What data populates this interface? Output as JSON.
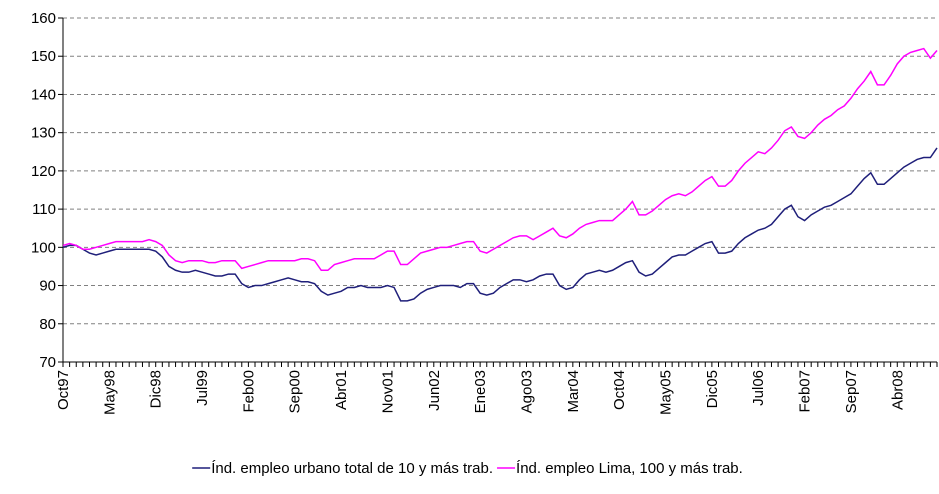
{
  "chart_data": {
    "type": "line",
    "categories": [
      "Oct97",
      null,
      null,
      null,
      null,
      null,
      null,
      "May98",
      null,
      null,
      null,
      null,
      null,
      null,
      "Dic98",
      null,
      null,
      null,
      null,
      null,
      null,
      "Jul99",
      null,
      null,
      null,
      null,
      null,
      null,
      "Feb00",
      null,
      null,
      null,
      null,
      null,
      null,
      "Sep00",
      null,
      null,
      null,
      null,
      null,
      null,
      "Abr01",
      null,
      null,
      null,
      null,
      null,
      null,
      "Nov01",
      null,
      null,
      null,
      null,
      null,
      null,
      "Jun02",
      null,
      null,
      null,
      null,
      null,
      null,
      "Ene03",
      null,
      null,
      null,
      null,
      null,
      null,
      "Ago03",
      null,
      null,
      null,
      null,
      null,
      null,
      "Mar04",
      null,
      null,
      null,
      null,
      null,
      null,
      "Oct04",
      null,
      null,
      null,
      null,
      null,
      null,
      "May05",
      null,
      null,
      null,
      null,
      null,
      null,
      "Dic05",
      null,
      null,
      null,
      null,
      null,
      null,
      "Jul06",
      null,
      null,
      null,
      null,
      null,
      null,
      "Feb07",
      null,
      null,
      null,
      null,
      null,
      null,
      "Sep07",
      null,
      null,
      null,
      null,
      null,
      null,
      "Abr08",
      null,
      null,
      null,
      null,
      null,
      null
    ],
    "series": [
      {
        "name": "Índ. empleo urbano total de 10 y más trab.",
        "color": "#1f1f7a",
        "values": [
          100,
          100.5,
          100.5,
          99.5,
          98.5,
          98,
          98.5,
          99,
          99.5,
          99.5,
          99.5,
          99.5,
          99.5,
          99.5,
          99,
          97.5,
          95,
          94,
          93.5,
          93.5,
          94,
          93.5,
          93,
          92.5,
          92.5,
          93,
          93,
          90.5,
          89.5,
          90,
          90,
          90.5,
          91,
          91.5,
          92,
          91.5,
          91,
          91,
          90.5,
          88.5,
          87.5,
          88,
          88.5,
          89.5,
          89.5,
          90,
          89.5,
          89.5,
          89.5,
          90,
          89.5,
          86,
          86,
          86.5,
          88,
          89,
          89.5,
          90,
          90,
          90,
          89.5,
          90.5,
          90.5,
          88,
          87.5,
          88,
          89.5,
          90.5,
          91.5,
          91.5,
          91,
          91.5,
          92.5,
          93,
          93,
          90,
          89,
          89.5,
          91.5,
          93,
          93.5,
          94,
          93.5,
          94,
          95,
          96,
          96.5,
          93.5,
          92.5,
          93,
          94.5,
          96,
          97.5,
          98,
          98,
          99,
          100,
          101,
          101.5,
          98.5,
          98.5,
          99,
          101,
          102.5,
          103.5,
          104.5,
          105,
          106,
          108,
          110,
          111,
          108,
          107,
          108.5,
          109.5,
          110.5,
          111,
          112,
          113,
          114,
          116,
          118,
          119.5,
          116.5,
          116.5,
          118,
          119.5,
          121,
          122,
          123,
          123.5,
          123.5,
          126
        ]
      },
      {
        "name": "Índ. empleo Lima, 100 y más trab.",
        "color": "#ff00ff",
        "values": [
          100.5,
          101,
          100.5,
          99.5,
          99.5,
          100,
          100.5,
          101,
          101.5,
          101.5,
          101.5,
          101.5,
          101.5,
          102,
          101.5,
          100.5,
          98,
          96.5,
          96,
          96.5,
          96.5,
          96.5,
          96,
          96,
          96.5,
          96.5,
          96.5,
          94.5,
          95,
          95.5,
          96,
          96.5,
          96.5,
          96.5,
          96.5,
          96.5,
          97,
          97,
          96.5,
          94,
          94,
          95.5,
          96,
          96.5,
          97,
          97,
          97,
          97,
          98,
          99,
          99,
          95.5,
          95.5,
          97,
          98.5,
          99,
          99.5,
          100,
          100,
          100.5,
          101,
          101.5,
          101.5,
          99,
          98.5,
          99.5,
          100.5,
          101.5,
          102.5,
          103,
          103,
          102,
          103,
          104,
          105,
          103,
          102.5,
          103.5,
          105,
          106,
          106.5,
          107,
          107,
          107,
          108.5,
          110,
          112,
          108.5,
          108.5,
          109.5,
          111,
          112.5,
          113.5,
          114,
          113.5,
          114.5,
          116,
          117.5,
          118.5,
          116,
          116,
          117.5,
          120,
          122,
          123.5,
          125,
          124.5,
          126,
          128,
          130.5,
          131.5,
          129,
          128.5,
          130,
          132,
          133.5,
          134.5,
          136,
          137,
          139,
          141.5,
          143.5,
          146,
          142.5,
          142.5,
          145,
          148,
          150,
          151,
          151.5,
          152,
          149.5,
          151.5
        ]
      }
    ],
    "ylim": [
      70,
      160
    ],
    "yticks": [
      70,
      80,
      90,
      100,
      110,
      120,
      130,
      140,
      150,
      160
    ],
    "grid": true,
    "legend": "bottom"
  }
}
